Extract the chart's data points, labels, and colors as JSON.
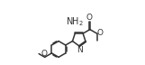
{
  "bg": "white",
  "lc": "#333333",
  "lw": 1.1,
  "fs": 6.5,
  "xlim": [
    -0.05,
    1.08
  ],
  "ylim": [
    0.1,
    0.95
  ]
}
